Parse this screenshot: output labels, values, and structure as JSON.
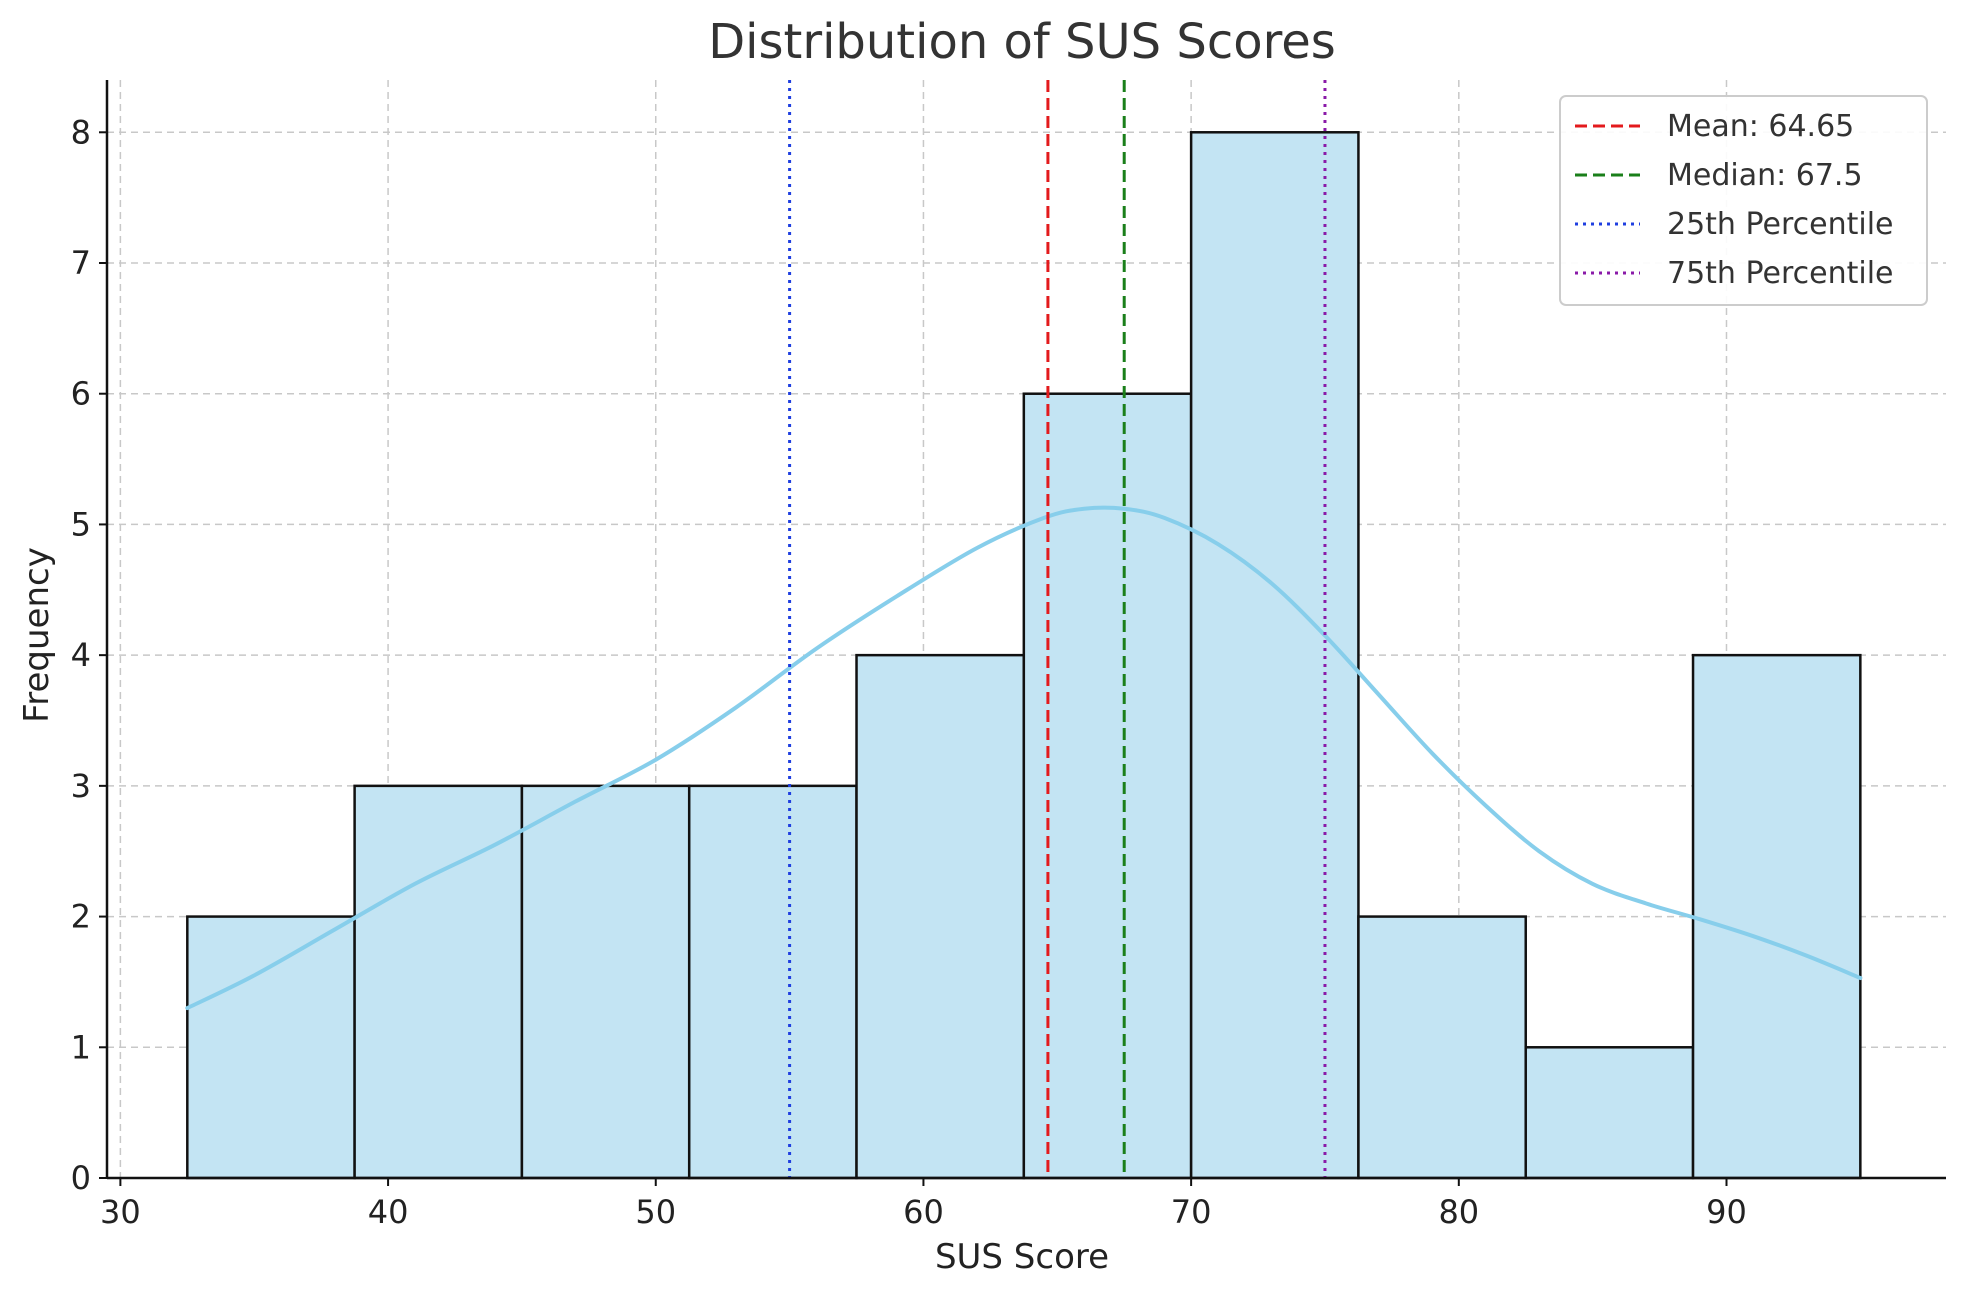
{
  "chart_data": {
    "type": "bar",
    "title": "Distribution of SUS Scores",
    "xlabel": "SUS Score",
    "ylabel": "Frequency",
    "xlim": [
      29.5,
      98.2
    ],
    "ylim": [
      0,
      8.4
    ],
    "xticks": [
      30,
      40,
      50,
      60,
      70,
      80,
      90
    ],
    "yticks": [
      0,
      1,
      2,
      3,
      4,
      5,
      6,
      7,
      8
    ],
    "grid": true,
    "bins": [
      {
        "start": 32.5,
        "end": 38.75,
        "count": 2
      },
      {
        "start": 38.75,
        "end": 45.0,
        "count": 3
      },
      {
        "start": 45.0,
        "end": 51.25,
        "count": 3
      },
      {
        "start": 51.25,
        "end": 57.5,
        "count": 3
      },
      {
        "start": 57.5,
        "end": 63.75,
        "count": 4
      },
      {
        "start": 63.75,
        "end": 70.0,
        "count": 6
      },
      {
        "start": 70.0,
        "end": 76.25,
        "count": 8
      },
      {
        "start": 76.25,
        "end": 82.5,
        "count": 2
      },
      {
        "start": 82.5,
        "end": 88.75,
        "count": 1
      },
      {
        "start": 88.75,
        "end": 95.0,
        "count": 4
      }
    ],
    "kde": {
      "x": [
        32.5,
        35,
        38,
        41,
        44,
        47,
        50,
        53,
        56,
        59,
        62,
        64.5,
        66,
        67.5,
        69,
        71,
        73,
        75,
        77,
        79,
        81,
        83,
        85,
        87,
        89,
        91,
        93,
        95
      ],
      "y": [
        1.3,
        1.55,
        1.9,
        2.25,
        2.55,
        2.88,
        3.2,
        3.6,
        4.05,
        4.45,
        4.82,
        5.05,
        5.12,
        5.12,
        5.05,
        4.85,
        4.55,
        4.15,
        3.7,
        3.25,
        2.85,
        2.5,
        2.25,
        2.1,
        1.98,
        1.85,
        1.7,
        1.53
      ]
    },
    "reference_lines": [
      {
        "name": "Mean: 64.65",
        "x": 64.65,
        "color": "#e31a1c",
        "style": "dashed"
      },
      {
        "name": "Median: 67.5",
        "x": 67.5,
        "color": "#1a7f1a",
        "style": "dashed"
      },
      {
        "name": "25th Percentile",
        "x": 55.0,
        "color": "#1f3fe0",
        "style": "dotted"
      },
      {
        "name": "75th Percentile",
        "x": 75.0,
        "color": "#8a1aa8",
        "style": "dotted"
      }
    ],
    "legend_position": "top-right",
    "colors": {
      "bar_fill": "#c3e4f3",
      "bar_edge": "#111111",
      "kde_line": "#87ceeb",
      "grid": "#c8c8c8"
    }
  }
}
